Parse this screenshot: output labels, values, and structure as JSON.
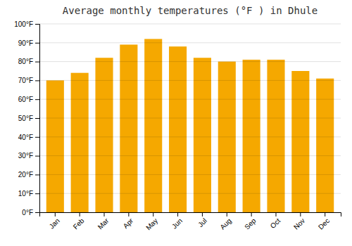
{
  "chart_data": {
    "type": "bar",
    "title": "Average monthly temperatures (°F ) in Dhule",
    "categories": [
      "Jan",
      "Feb",
      "Mar",
      "Apr",
      "May",
      "Jun",
      "Jul",
      "Aug",
      "Sep",
      "Oct",
      "Nov",
      "Dec"
    ],
    "values": [
      70,
      74,
      82,
      89,
      92,
      88,
      82,
      80,
      81,
      81,
      75,
      71
    ],
    "color": "#F5A800",
    "ylim": [
      0,
      100
    ],
    "yticks": [
      {
        "value": 0,
        "label": "0°F"
      },
      {
        "value": 10,
        "label": "10°F"
      },
      {
        "value": 20,
        "label": "20°F"
      },
      {
        "value": 30,
        "label": "30°F"
      },
      {
        "value": 40,
        "label": "40°F"
      },
      {
        "value": 50,
        "label": "50°F"
      },
      {
        "value": 60,
        "label": "60°F"
      },
      {
        "value": 70,
        "label": "70°F"
      },
      {
        "value": 80,
        "label": "80°F"
      },
      {
        "value": 90,
        "label": "90°F"
      },
      {
        "value": 100,
        "label": "100°F"
      }
    ],
    "grid": true
  }
}
